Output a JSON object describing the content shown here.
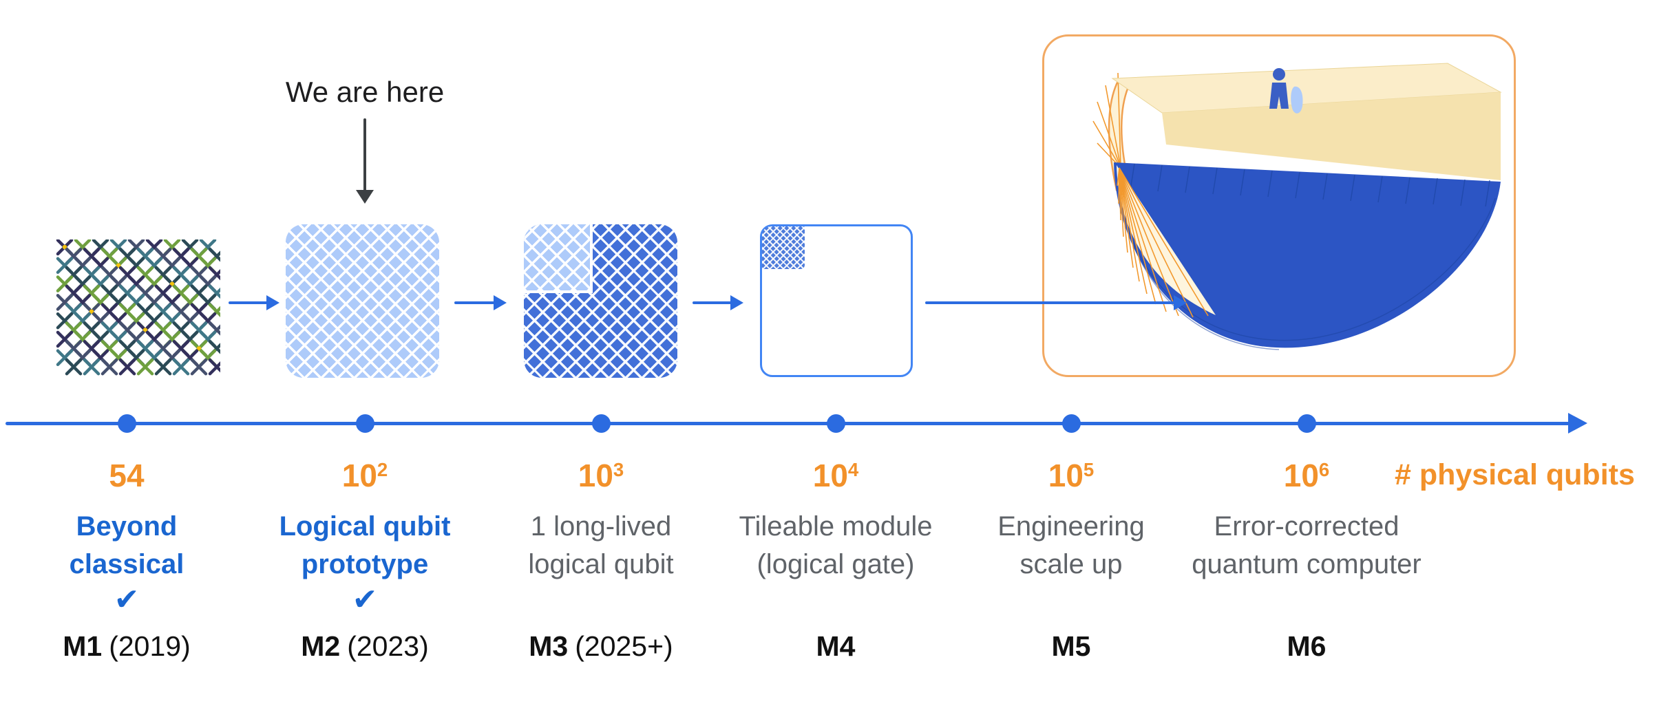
{
  "annotation": {
    "we_are_here": "We are here"
  },
  "axis_label": "# physical qubits",
  "checkmark": "✔",
  "milestones": [
    {
      "id": "M1",
      "year": "(2019)",
      "qubits_base": "54",
      "qubits_exp": "",
      "name_line1": "Beyond",
      "name_line2": "classical",
      "checked": true,
      "emphasis": "blue"
    },
    {
      "id": "M2",
      "year": "(2023)",
      "qubits_base": "10",
      "qubits_exp": "2",
      "name_line1": "Logical qubit",
      "name_line2": "prototype",
      "checked": true,
      "emphasis": "blue"
    },
    {
      "id": "M3",
      "year": "(2025+)",
      "qubits_base": "10",
      "qubits_exp": "3",
      "name_line1": "1 long-lived",
      "name_line2": "logical qubit",
      "checked": false,
      "emphasis": "gray"
    },
    {
      "id": "M4",
      "year": "",
      "qubits_base": "10",
      "qubits_exp": "4",
      "name_line1": "Tileable module",
      "name_line2": "(logical gate)",
      "checked": false,
      "emphasis": "gray"
    },
    {
      "id": "M5",
      "year": "",
      "qubits_base": "10",
      "qubits_exp": "5",
      "name_line1": "Engineering",
      "name_line2": "scale up",
      "checked": false,
      "emphasis": "gray"
    },
    {
      "id": "M6",
      "year": "",
      "qubits_base": "10",
      "qubits_exp": "6",
      "name_line1": "Error-corrected",
      "name_line2": "quantum computer",
      "checked": false,
      "emphasis": "gray"
    }
  ],
  "colors": {
    "blue": "#2B6BE0",
    "blue_text": "#1A66D0",
    "orange": "#F2912A",
    "gray": "#5F6368",
    "light_square": "#AECBFA",
    "dark_square": "#4270D8",
    "box_border": "#F2A963",
    "accent_yellow": "#F4C20D"
  },
  "m1_pattern": {
    "rows": 14,
    "cols": 9,
    "colors": [
      "#33305C",
      "#3F7787",
      "#6FA03F",
      "#45506E",
      "#2B4A56"
    ],
    "accent": "#F4C20D"
  }
}
